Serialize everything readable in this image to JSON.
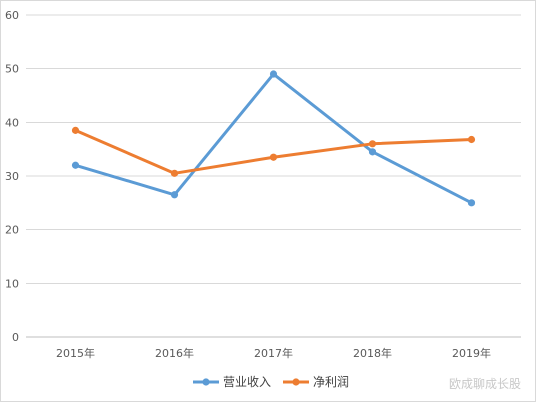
{
  "chart_data": {
    "type": "line",
    "categories": [
      "2015年",
      "2016年",
      "2017年",
      "2018年",
      "2019年"
    ],
    "series": [
      {
        "name": "营业收入",
        "values": [
          32,
          26.5,
          49,
          34.5,
          25
        ],
        "color": "#5b9bd5"
      },
      {
        "name": "净利润",
        "values": [
          38.5,
          30.5,
          33.5,
          36,
          36.8
        ],
        "color": "#ed7d31"
      }
    ],
    "ylim": [
      0,
      60
    ],
    "yticks": [
      "0",
      "10",
      "20",
      "30",
      "40",
      "50",
      "60"
    ],
    "grid": true,
    "legend": "bottom",
    "title": "",
    "xlabel": "",
    "ylabel": ""
  },
  "watermark": "欧成聊成长股"
}
